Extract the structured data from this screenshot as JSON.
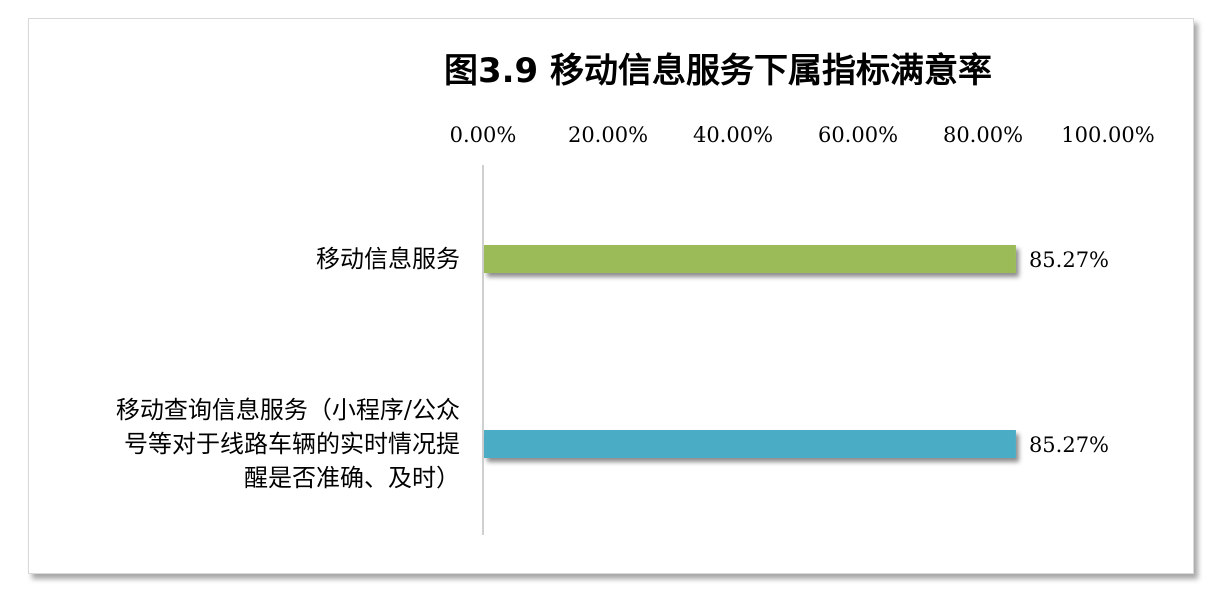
{
  "chart_data": {
    "type": "bar",
    "orientation": "horizontal",
    "title": "图3.9 移动信息服务下属指标满意率",
    "xaxis_position": "top",
    "xlim": [
      0,
      100
    ],
    "tick_labels": [
      "0.00%",
      "20.00%",
      "40.00%",
      "60.00%",
      "80.00%",
      "100.00%"
    ],
    "grid": false,
    "legend": "none",
    "categories": [
      {
        "lines": [
          "移动信息服务"
        ],
        "value": 85.27,
        "label": "85.27%",
        "color": "#9bbb59"
      },
      {
        "lines": [
          "移动查询信息服务（小程序/公众",
          "号等对于线路车辆的实时情况提",
          "醒是否准确、及时）"
        ],
        "value": 85.27,
        "label": "85.27%",
        "color": "#4bacc6"
      }
    ]
  }
}
